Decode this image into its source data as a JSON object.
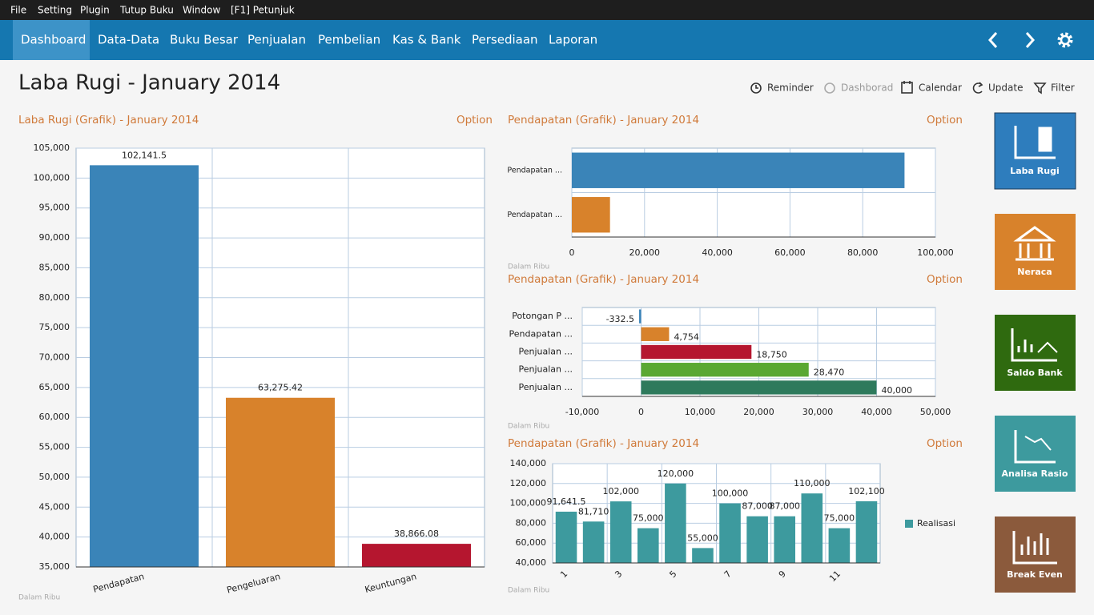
{
  "menu": [
    "File",
    "Setting",
    "Plugin",
    "Tutup Buku",
    "Window",
    "[F1] Petunjuk"
  ],
  "nav": [
    "Dashboard",
    "Data-Data",
    "Buku Besar",
    "Penjualan",
    "Pembelian",
    "Kas & Bank",
    "Persediaan",
    "Laporan"
  ],
  "page_title": "Laba Rugi - January 2014",
  "toolbar": [
    "Reminder",
    "Dashborad",
    "Calendar",
    "Update",
    "Filter"
  ],
  "tiles": [
    "Laba Rugi",
    "Neraca",
    "Saldo Bank",
    "Analisa Rasio",
    "Break Even"
  ],
  "chart_data": [
    {
      "type": "bar",
      "title": "Laba Rugi (Grafik) - January 2014",
      "option": "Option",
      "note": "Dalam Ribu",
      "categories": [
        "Pendapatan",
        "Pengeluaran",
        "Keuntungan"
      ],
      "values": [
        102141.5,
        63275.42,
        38866.08
      ],
      "value_labels": [
        "102,141.5",
        "63,275.42",
        "38,866.08"
      ],
      "colors": [
        "#3a84b8",
        "#d8822b",
        "#b5162f"
      ],
      "ylim": [
        35000,
        105000
      ],
      "yticks": [
        {
          "value": 35000,
          "label": "35,000"
        },
        {
          "value": 40000,
          "label": "40,000"
        },
        {
          "value": 45000,
          "label": "45,000"
        },
        {
          "value": 50000,
          "label": "50,000"
        },
        {
          "value": 55000,
          "label": "55,000"
        },
        {
          "value": 60000,
          "label": "60,000"
        },
        {
          "value": 65000,
          "label": "65,000"
        },
        {
          "value": 70000,
          "label": "70,000"
        },
        {
          "value": 75000,
          "label": "75,000"
        },
        {
          "value": 80000,
          "label": "80,000"
        },
        {
          "value": 85000,
          "label": "85,000"
        },
        {
          "value": 90000,
          "label": "90,000"
        },
        {
          "value": 95000,
          "label": "95,000"
        },
        {
          "value": 100000,
          "label": "100,000"
        },
        {
          "value": 105000,
          "label": "105,000"
        }
      ],
      "grid": true
    },
    {
      "type": "barh",
      "title": "Pendapatan (Grafik) - January 2014",
      "option": "Option",
      "note": "Dalam Ribu",
      "categories": [
        "Pendapatan ...",
        "Pendapatan ..."
      ],
      "values": [
        91500,
        10500
      ],
      "colors": [
        "#3a84b8",
        "#d8822b"
      ],
      "xlim": [
        0,
        100000
      ],
      "xticks": [
        0,
        {
          "value": 20000,
          "label": "20,000"
        },
        {
          "value": 40000,
          "label": "40,000"
        },
        {
          "value": 60000,
          "label": "60,000"
        },
        {
          "value": 80000,
          "label": "80,000"
        },
        {
          "value": 100000,
          "label": "100,000"
        }
      ],
      "grid": true
    },
    {
      "type": "barh",
      "title": "Pendapatan (Grafik) - January 2014",
      "option": "Option",
      "note": "Dalam Ribu",
      "categories": [
        "Potongan P ...",
        "Pendapatan ...",
        "Penjualan ...",
        "Penjualan ...",
        "Penjualan ..."
      ],
      "values": [
        -332.5,
        4754,
        18750,
        28470,
        40000
      ],
      "value_labels": [
        "-332.5",
        "4,754",
        "18,750",
        "28,470",
        "40,000"
      ],
      "colors": [
        "#3a84b8",
        "#d8822b",
        "#b5162f",
        "#5aa832",
        "#2e7a5c"
      ],
      "xlim": [
        -10000,
        50000
      ],
      "xticks": [
        {
          "value": -10000,
          "label": "-10,000"
        },
        0,
        {
          "value": 10000,
          "label": "10,000"
        },
        {
          "value": 20000,
          "label": "20,000"
        },
        {
          "value": 30000,
          "label": "30,000"
        },
        {
          "value": 40000,
          "label": "40,000"
        },
        {
          "value": 50000,
          "label": "50,000"
        }
      ],
      "grid": true
    },
    {
      "type": "bar",
      "title": "Pendapatan (Grafik) - January 2014",
      "option": "Option",
      "note": "Dalam Ribu",
      "categories": [
        "1",
        null,
        "3",
        null,
        "5",
        null,
        "7",
        null,
        "9",
        null,
        "11",
        null
      ],
      "series": [
        {
          "name": "Realisasi",
          "color": "#3d9a9e",
          "values": [
            91641.5,
            81710,
            102000,
            75000,
            120000,
            55000,
            100000,
            87000,
            87000,
            110000,
            75000,
            102100
          ],
          "value_labels": [
            "91,641.5",
            "81,710",
            "102,000",
            "75,000",
            "120,000",
            "55,000",
            "100,000",
            "87,000",
            "87,000",
            "110,000",
            "75,000",
            "102,100"
          ]
        }
      ],
      "ylim": [
        40000,
        140000
      ],
      "yticks": [
        {
          "value": 40000,
          "label": "40,000"
        },
        {
          "value": 60000,
          "label": "60,000"
        },
        {
          "value": 80000,
          "label": "80,000"
        },
        {
          "value": 100000,
          "label": "100,000"
        },
        {
          "value": 120000,
          "label": "120,000"
        },
        {
          "value": 140000,
          "label": "140,000"
        }
      ],
      "grid": true,
      "legend": "right"
    }
  ]
}
